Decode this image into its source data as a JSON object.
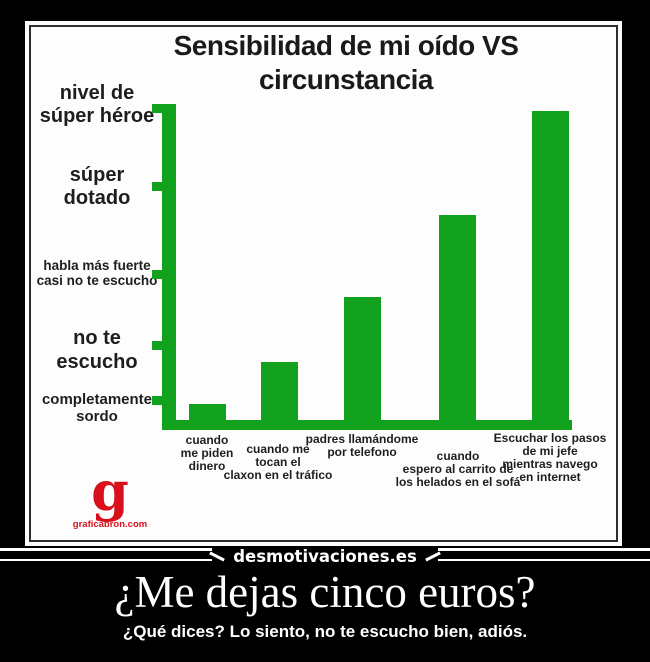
{
  "poster": {
    "watermark": "desmotivaciones.es",
    "caption": "¿Me dejas cinco euros?",
    "subcaption": "¿Qué dices? Lo siento, no te escucho bien, adiós."
  },
  "logo": {
    "glyph": "g",
    "site": "graficabron.com",
    "color": "#d8101c"
  },
  "chart_data": {
    "type": "bar",
    "title": "Sensibilidad de mi oído VS circunstancia",
    "title_multiline": "Sensibilidad de mi oído VS\ncircunstancia",
    "xlabel": "",
    "ylabel": "",
    "grid": false,
    "legend": "none",
    "background": "#fdfdfd",
    "bar_color": "#12a11c",
    "axis_color": "#12a11c",
    "categories": [
      "cuando me piden dinero",
      "cuando me tocan el claxon en el tráfico",
      "padres llamándome por telefono",
      "cuando espero al carrito de los helados en el sofá",
      "Escuchar los pasos de mi jefe mientras navego en internet"
    ],
    "x_labels_multiline": [
      "cuando\nme piden\ndinero",
      "cuando me\ntocan el\nclaxon en el tráfico",
      "padres llamándome\npor telefono",
      "cuando\nespero al carrito de\nlos helados en el sofá",
      "Escuchar los pasos\nde mi jefe\nmientras navego\nen internet"
    ],
    "y_axis_labels_top_to_bottom": [
      "nivel de súper héroe",
      "súper dotado",
      "habla más fuerte casi no te escucho",
      "no te escucho",
      "completamente sordo"
    ],
    "y_labels_multiline": [
      "nivel de\nsúper héroe",
      "súper\ndotado",
      "habla más fuerte\ncasi no te escucho",
      "no te\nescucho",
      "completamente\nsordo"
    ],
    "values_pct_of_axis": [
      8,
      21,
      41,
      66,
      98
    ],
    "tick_positions_pct_of_axis": [
      9,
      26,
      48,
      75,
      99
    ],
    "ylim": [
      0,
      100
    ]
  }
}
